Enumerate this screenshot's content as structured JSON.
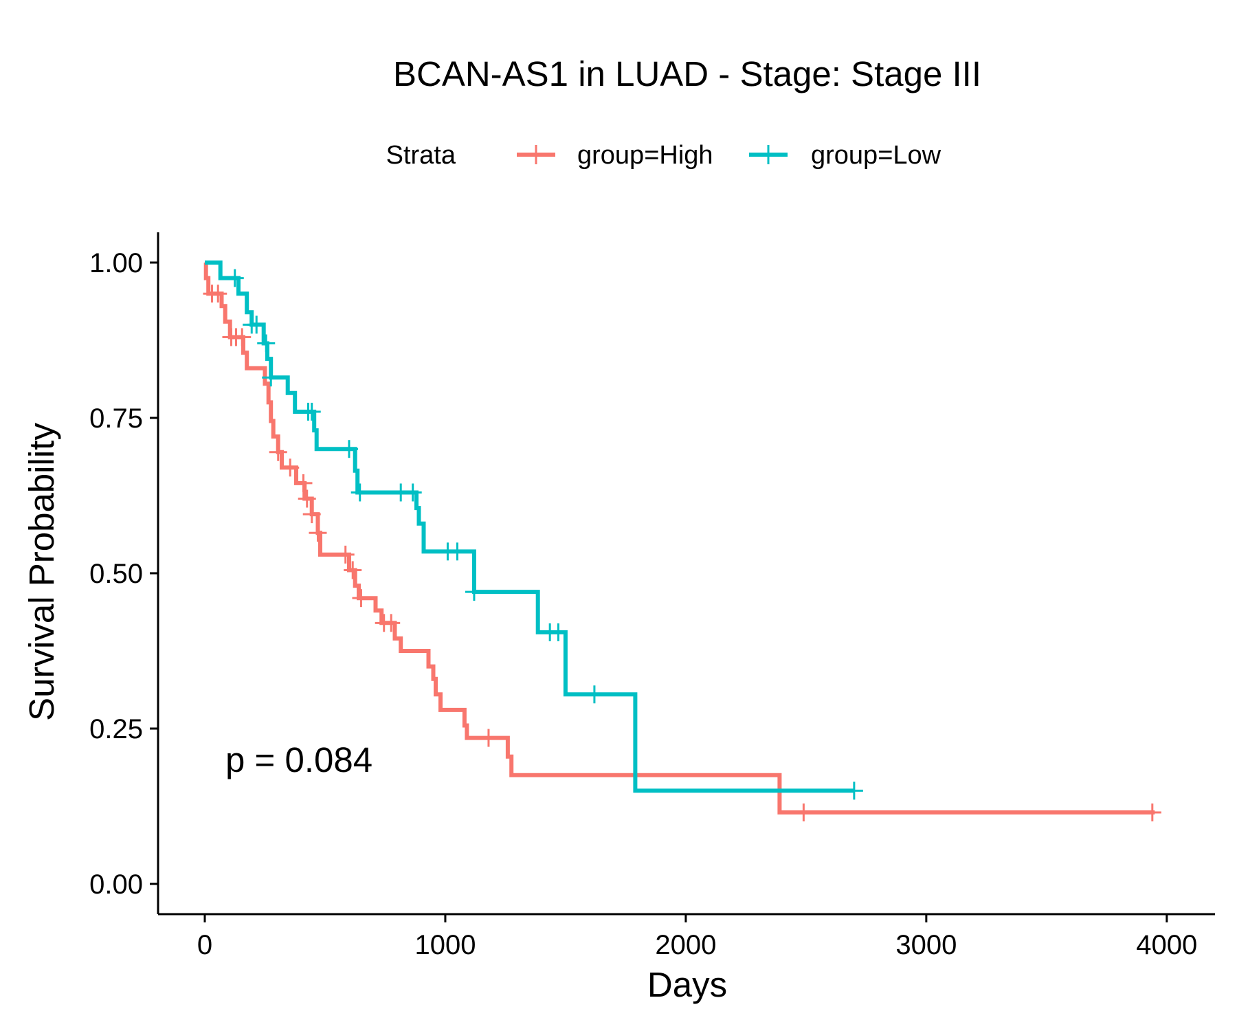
{
  "chart_data": {
    "type": "line",
    "title": "BCAN-AS1 in LUAD - Stage: Stage III",
    "xlabel": "Days",
    "ylabel": "Survival Probability",
    "xlim": [
      -200,
      4200
    ],
    "ylim": [
      -0.05,
      1.05
    ],
    "x_ticks": [
      0,
      1000,
      2000,
      3000,
      4000
    ],
    "x_tick_labels": [
      "0",
      "1000",
      "2000",
      "3000",
      "4000"
    ],
    "y_ticks": [
      0,
      0.25,
      0.5,
      0.75,
      1.0
    ],
    "y_tick_labels": [
      "0.00",
      "0.25",
      "0.50",
      "0.75",
      "1.00"
    ],
    "grid": false,
    "legend": {
      "title": "Strata",
      "position": "top",
      "entries": [
        "group=High",
        "group=Low"
      ]
    },
    "annotation": "p = 0.084",
    "series": [
      {
        "name": "group=High",
        "color": "#F8766D",
        "steps": [
          [
            0,
            1.0
          ],
          [
            5,
            0.975
          ],
          [
            15,
            0.95
          ],
          [
            70,
            0.93
          ],
          [
            85,
            0.905
          ],
          [
            105,
            0.88
          ],
          [
            160,
            0.855
          ],
          [
            175,
            0.83
          ],
          [
            250,
            0.805
          ],
          [
            265,
            0.775
          ],
          [
            275,
            0.745
          ],
          [
            285,
            0.72
          ],
          [
            305,
            0.695
          ],
          [
            320,
            0.67
          ],
          [
            380,
            0.645
          ],
          [
            415,
            0.62
          ],
          [
            445,
            0.595
          ],
          [
            470,
            0.565
          ],
          [
            480,
            0.53
          ],
          [
            600,
            0.505
          ],
          [
            625,
            0.48
          ],
          [
            640,
            0.46
          ],
          [
            710,
            0.44
          ],
          [
            735,
            0.42
          ],
          [
            790,
            0.395
          ],
          [
            815,
            0.375
          ],
          [
            930,
            0.35
          ],
          [
            950,
            0.33
          ],
          [
            960,
            0.305
          ],
          [
            980,
            0.28
          ],
          [
            1080,
            0.255
          ],
          [
            1090,
            0.235
          ],
          [
            1260,
            0.205
          ],
          [
            1275,
            0.175
          ],
          [
            2390,
            0.115
          ],
          [
            3950,
            0.115
          ]
        ],
        "censor_times": [
          30,
          55,
          110,
          130,
          155,
          305,
          355,
          410,
          425,
          445,
          470,
          585,
          615,
          650,
          745,
          775,
          1180,
          2490,
          3940
        ]
      },
      {
        "name": "group=Low",
        "color": "#00BFC4",
        "steps": [
          [
            0,
            1.0
          ],
          [
            65,
            0.975
          ],
          [
            140,
            0.95
          ],
          [
            175,
            0.92
          ],
          [
            195,
            0.9
          ],
          [
            245,
            0.87
          ],
          [
            260,
            0.845
          ],
          [
            275,
            0.815
          ],
          [
            345,
            0.79
          ],
          [
            375,
            0.76
          ],
          [
            455,
            0.73
          ],
          [
            465,
            0.7
          ],
          [
            625,
            0.665
          ],
          [
            635,
            0.63
          ],
          [
            880,
            0.605
          ],
          [
            890,
            0.58
          ],
          [
            910,
            0.535
          ],
          [
            1120,
            0.47
          ],
          [
            1385,
            0.405
          ],
          [
            1500,
            0.305
          ],
          [
            1790,
            0.15
          ],
          [
            2700,
            0.15
          ]
        ],
        "censor_times": [
          125,
          195,
          215,
          255,
          275,
          430,
          445,
          600,
          645,
          815,
          865,
          1010,
          1050,
          1120,
          1435,
          1470,
          1620,
          2700
        ]
      }
    ]
  }
}
